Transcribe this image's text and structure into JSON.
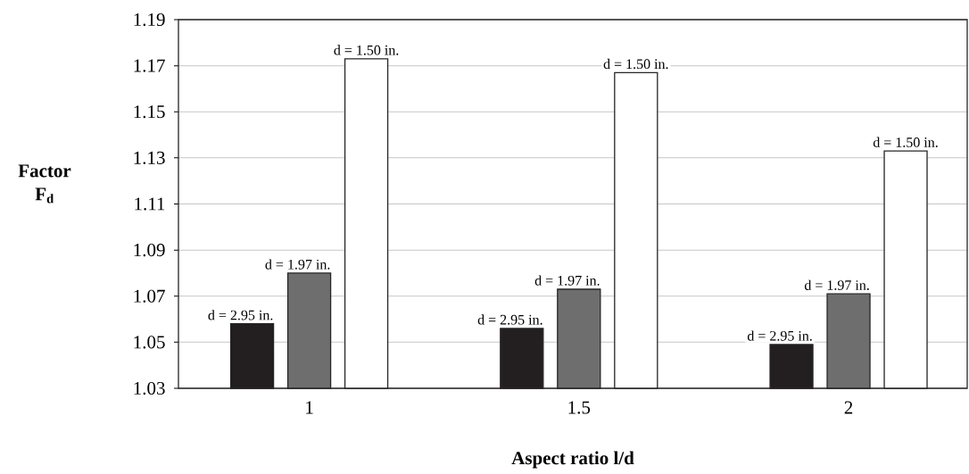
{
  "chart_data": {
    "type": "bar",
    "xlabel": "Aspect ratio l/d",
    "ylabel": "Factor F$_{d}$",
    "categories": [
      "1",
      "1.5",
      "2"
    ],
    "series": [
      {
        "name": "d = 2.95 in.",
        "color": "#231f20",
        "values": [
          1.058,
          1.056,
          1.049
        ]
      },
      {
        "name": "d = 1.97 in.",
        "color": "#6e6e6e",
        "values": [
          1.08,
          1.073,
          1.071
        ]
      },
      {
        "name": "d = 1.50 in.",
        "color": "#ffffff",
        "values": [
          1.173,
          1.167,
          1.133
        ]
      }
    ],
    "ylim": [
      1.03,
      1.19
    ],
    "yticks": [
      1.03,
      1.05,
      1.07,
      1.09,
      1.11,
      1.13,
      1.15,
      1.17,
      1.19
    ],
    "grid": "y",
    "legend": false
  }
}
